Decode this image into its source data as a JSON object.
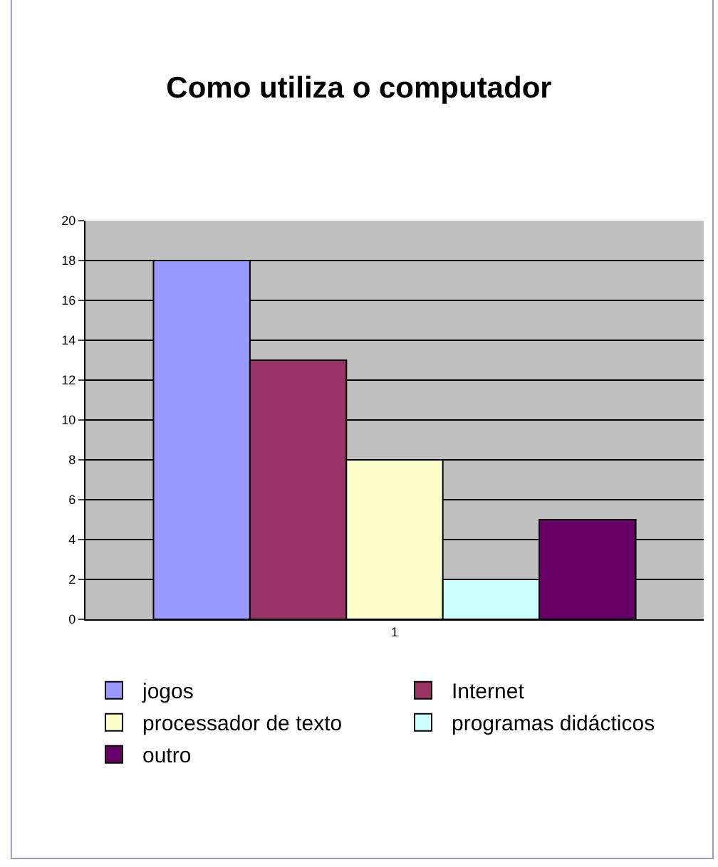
{
  "chart_data": {
    "type": "bar",
    "title": "Como utiliza o computador",
    "categories": [
      "1"
    ],
    "series": [
      {
        "name": "jogos",
        "color": "#9999ff",
        "values": [
          18
        ]
      },
      {
        "name": "Internet",
        "color": "#993366",
        "values": [
          13
        ]
      },
      {
        "name": "processador de texto",
        "color": "#ffffcc",
        "values": [
          8
        ]
      },
      {
        "name": "programas didácticos",
        "color": "#ccffff",
        "values": [
          2
        ]
      },
      {
        "name": "outro",
        "color": "#660066",
        "values": [
          5
        ]
      }
    ],
    "ylim": [
      0,
      20
    ],
    "yticks": [
      0,
      2,
      4,
      6,
      8,
      10,
      12,
      14,
      16,
      18,
      20
    ],
    "grid": "y",
    "legend": "bottom"
  }
}
